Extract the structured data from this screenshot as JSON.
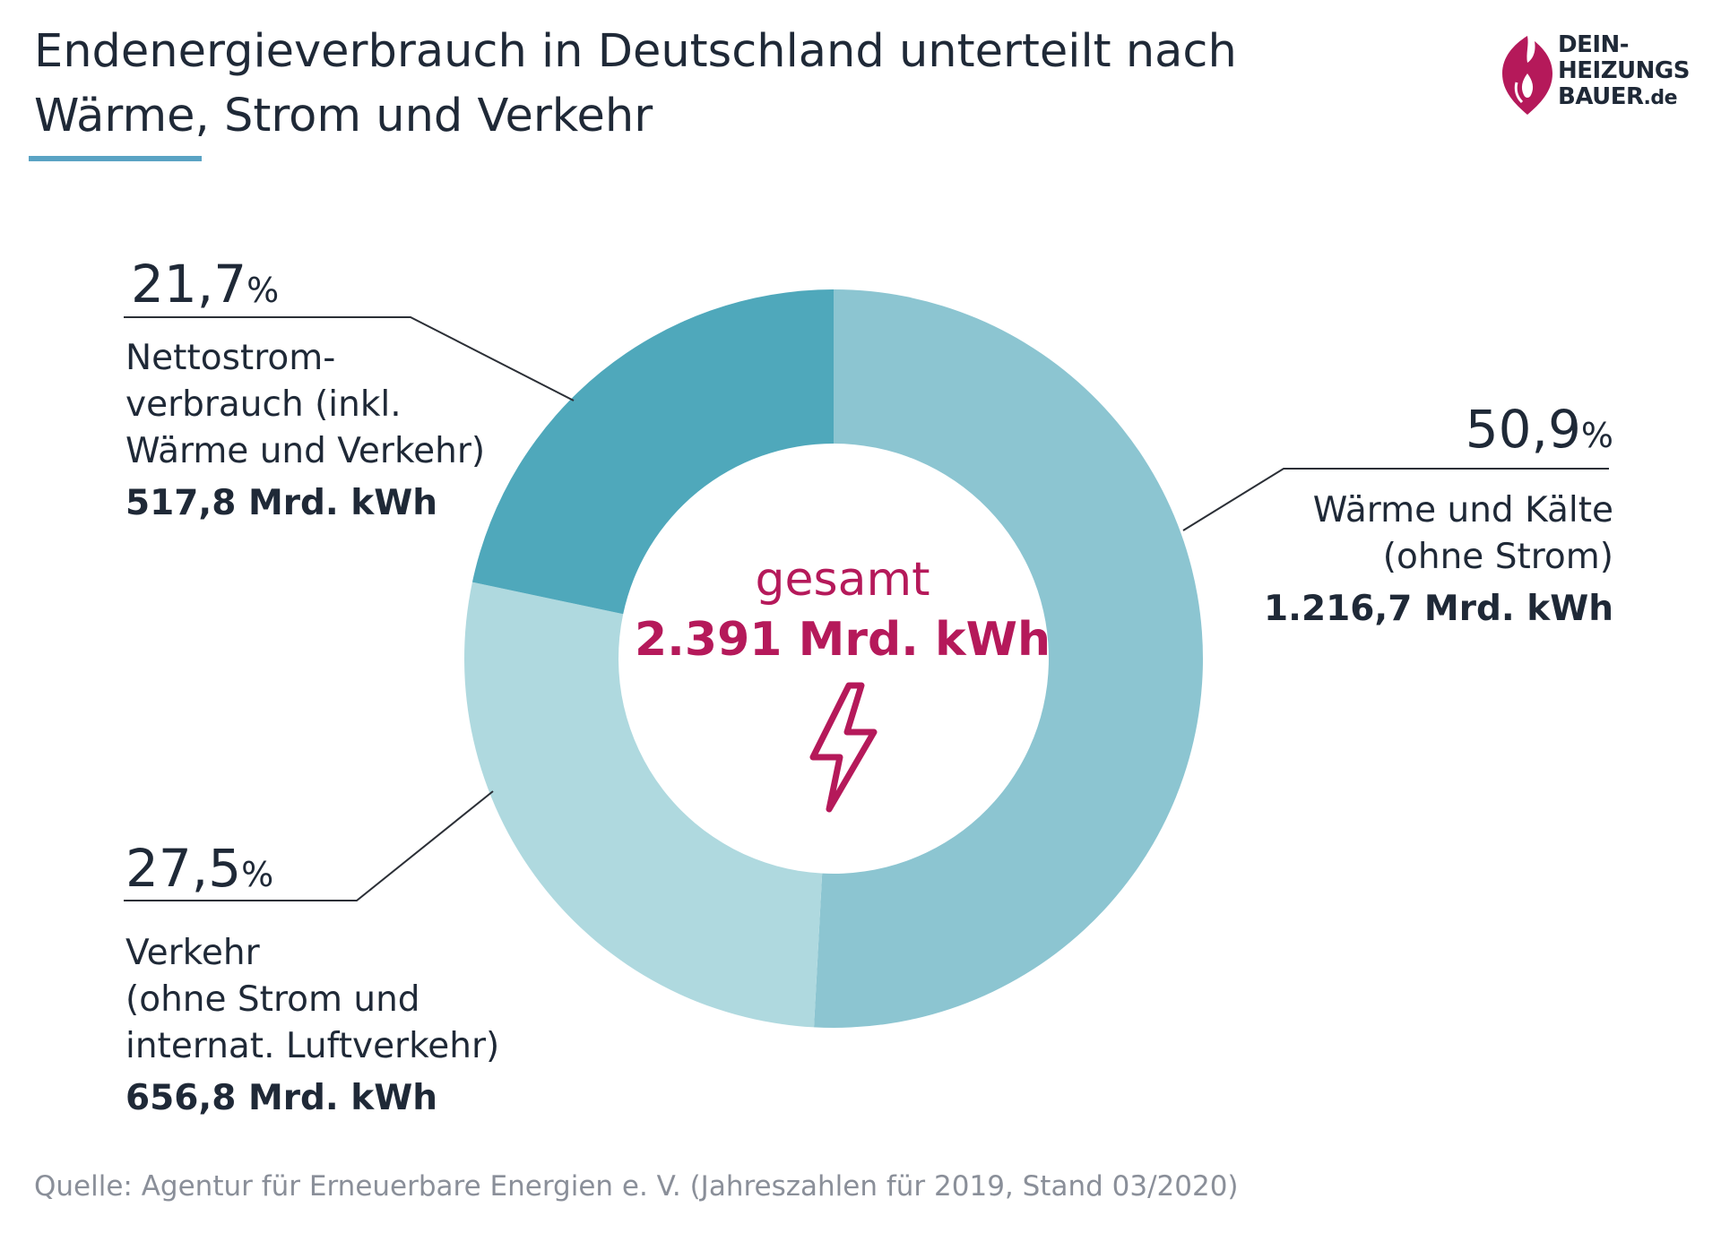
{
  "title": {
    "line1": "Endenergieverbrauch in Deutschland unterteilt nach",
    "line2": "Wärme, Strom und Verkehr"
  },
  "logo": {
    "line1": "DEIN-",
    "line2": "HEIZUNGS",
    "line3": "BAUER",
    "line3_suffix": ".de",
    "colors": {
      "flame": "#b5195a",
      "text": "#1f2937"
    }
  },
  "center": {
    "label": "gesamt",
    "total": "2.391 Mrd. kWh",
    "icon": "lightning-bolt-icon"
  },
  "callouts": {
    "strom": {
      "percent": "21,7",
      "percent_sign": "%",
      "desc_lines": [
        "Nettostrom-",
        "verbrauch (inkl.",
        "Wärme und Verkehr)"
      ],
      "value": "517,8 Mrd. kWh"
    },
    "waerme": {
      "percent": "50,9",
      "percent_sign": "%",
      "desc_lines": [
        "Wärme und Kälte",
        "(ohne Strom)"
      ],
      "value": "1.216,7 Mrd. kWh"
    },
    "verkehr": {
      "percent": "27,5",
      "percent_sign": "%",
      "desc_lines": [
        "Verkehr",
        "(ohne Strom und",
        "internat. Luftverkehr)"
      ],
      "value": "656,8 Mrd. kWh"
    }
  },
  "source": "Quelle: Agentur für Erneuerbare Energien e. V. (Jahreszahlen für 2019, Stand 03/2020)",
  "chart_data": {
    "type": "pie",
    "title": "Endenergieverbrauch in Deutschland unterteilt nach Wärme, Strom und Verkehr",
    "unit": "Mrd. kWh",
    "total": 2391,
    "start_angle_deg": 0,
    "direction": "clockwise",
    "slices": [
      {
        "label": "Wärme und Kälte (ohne Strom)",
        "percent": 50.9,
        "value": 1216.7,
        "color": "#8cc5d1"
      },
      {
        "label": "Verkehr (ohne Strom und internat. Luftverkehr)",
        "percent": 27.5,
        "value": 656.8,
        "color": "#afd9df"
      },
      {
        "label": "Nettostromverbrauch (inkl. Wärme und Verkehr)",
        "percent": 21.7,
        "value": 517.8,
        "color": "#4fa8bb"
      }
    ],
    "legend": "none"
  }
}
